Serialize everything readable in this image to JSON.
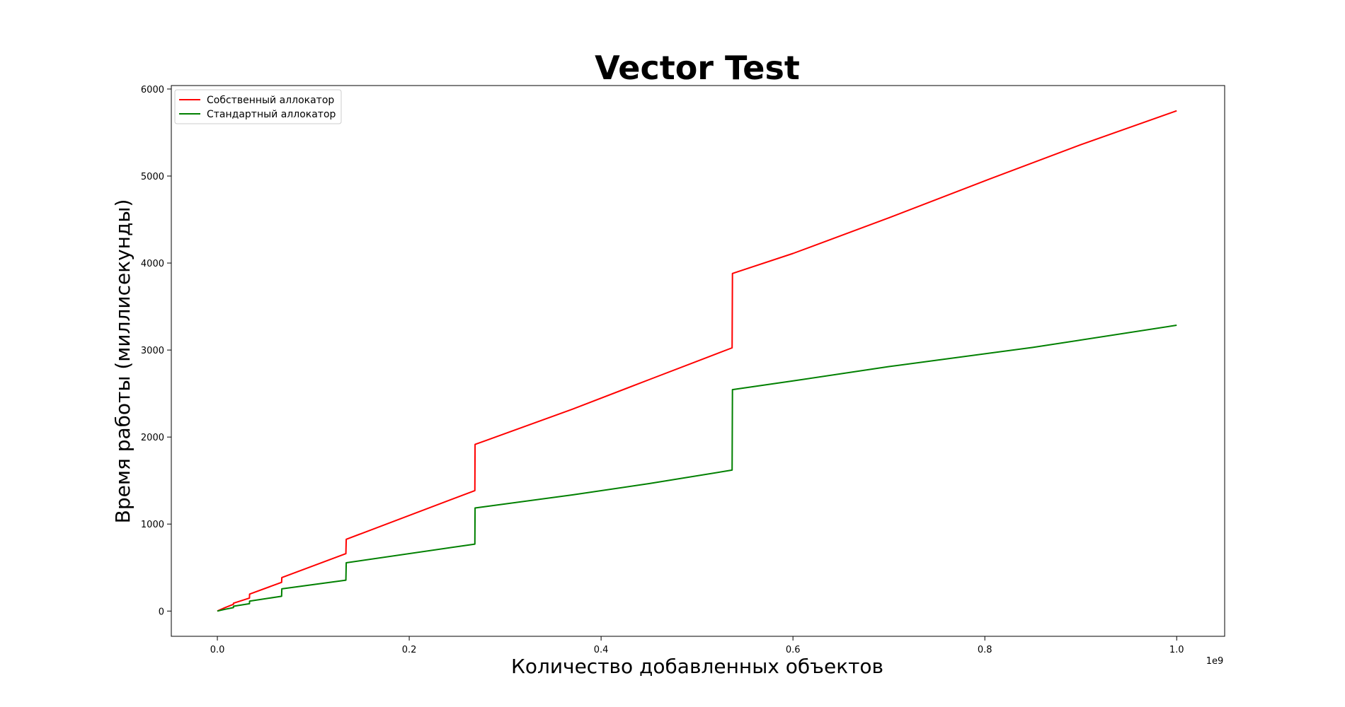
{
  "chart_data": {
    "type": "line",
    "title": "Vector Test",
    "xlabel": "Количество добавленных объектов",
    "ylabel": "Время работы (миллисекунды)",
    "x_offset_label": "1e9",
    "xlim": [
      -0.048,
      1.05
    ],
    "ylim": [
      -290,
      6040
    ],
    "x_ticks": [
      0.0,
      0.2,
      0.4,
      0.6,
      0.8,
      1.0
    ],
    "x_tick_labels": [
      "0.0",
      "0.2",
      "0.4",
      "0.6",
      "0.8",
      "1.0"
    ],
    "y_ticks": [
      0,
      1000,
      2000,
      3000,
      4000,
      5000,
      6000
    ],
    "y_tick_labels": [
      "0",
      "1000",
      "2000",
      "3000",
      "4000",
      "5000",
      "6000"
    ],
    "grid": false,
    "legend_position": "top-left",
    "series": [
      {
        "name": "Собственный аллокатор",
        "color": "#ff0000",
        "points": [
          [
            0.0,
            0
          ],
          [
            0.004,
            20
          ],
          [
            0.008,
            40
          ],
          [
            0.0168,
            78
          ],
          [
            0.0168,
            90
          ],
          [
            0.0335,
            150
          ],
          [
            0.0336,
            195
          ],
          [
            0.067,
            330
          ],
          [
            0.0672,
            385
          ],
          [
            0.134,
            660
          ],
          [
            0.1343,
            825
          ],
          [
            0.2684,
            1385
          ],
          [
            0.2686,
            1915
          ],
          [
            0.28,
            1960
          ],
          [
            0.37,
            2320
          ],
          [
            0.45,
            2660
          ],
          [
            0.5366,
            3025
          ],
          [
            0.5369,
            3880
          ],
          [
            0.6,
            4110
          ],
          [
            0.7,
            4520
          ],
          [
            0.8,
            4945
          ],
          [
            0.9,
            5360
          ],
          [
            1.0,
            5750
          ]
        ]
      },
      {
        "name": "Стандартный аллокатор",
        "color": "#008000",
        "points": [
          [
            0.0,
            0
          ],
          [
            0.008,
            20
          ],
          [
            0.0168,
            40
          ],
          [
            0.0168,
            55
          ],
          [
            0.0335,
            85
          ],
          [
            0.0336,
            115
          ],
          [
            0.067,
            170
          ],
          [
            0.0672,
            255
          ],
          [
            0.134,
            355
          ],
          [
            0.1343,
            555
          ],
          [
            0.2684,
            770
          ],
          [
            0.2686,
            1185
          ],
          [
            0.37,
            1335
          ],
          [
            0.45,
            1465
          ],
          [
            0.5366,
            1620
          ],
          [
            0.5369,
            2545
          ],
          [
            0.6,
            2645
          ],
          [
            0.7,
            2810
          ],
          [
            0.85,
            3030
          ],
          [
            1.0,
            3285
          ]
        ]
      }
    ]
  }
}
